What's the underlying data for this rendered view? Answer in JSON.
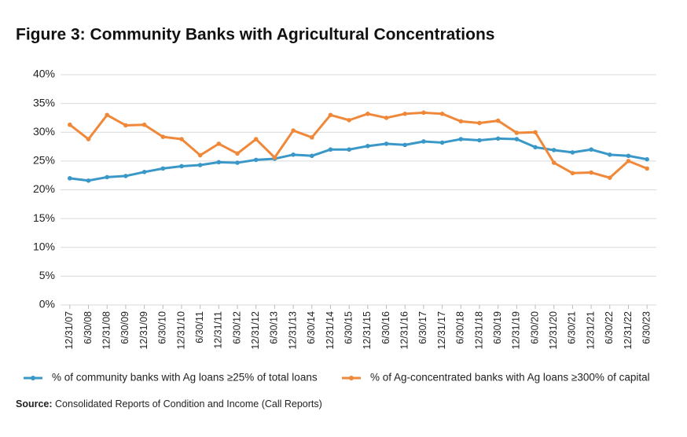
{
  "chart_data": {
    "type": "line",
    "title": "Figure 3: Community Banks with Agricultural Concentrations",
    "categories": [
      "12/31/07",
      "6/30/08",
      "12/31/08",
      "6/30/09",
      "12/31/09",
      "6/30/10",
      "12/31/10",
      "6/30/11",
      "12/31/11",
      "6/30/12",
      "12/31/12",
      "6/30/13",
      "12/31/13",
      "6/30/14",
      "12/31/14",
      "6/30/15",
      "12/31/15",
      "6/30/16",
      "12/31/16",
      "6/30/17",
      "12/31/17",
      "6/30/18",
      "12/31/18",
      "6/30/19",
      "12/31/19",
      "6/30/20",
      "12/31/20",
      "6/30/21",
      "12/31/21",
      "6/30/22",
      "12/31/22",
      "6/30/23"
    ],
    "series": [
      {
        "name": "% of community banks with Ag loans ≥25% of total loans",
        "color": "#3a98c8",
        "values": [
          22.0,
          21.6,
          22.2,
          22.4,
          23.1,
          23.7,
          24.1,
          24.3,
          24.8,
          24.7,
          25.2,
          25.4,
          26.1,
          25.9,
          27.0,
          27.0,
          27.6,
          28.0,
          27.8,
          28.4,
          28.2,
          28.8,
          28.6,
          28.9,
          28.8,
          27.4,
          26.9,
          26.5,
          27.0,
          26.1,
          25.9,
          25.3
        ]
      },
      {
        "name": "% of Ag-concentrated banks with Ag loans ≥300% of capital",
        "color": "#f0883a",
        "values": [
          31.3,
          28.8,
          33.0,
          31.2,
          31.3,
          29.2,
          28.8,
          26.0,
          28.0,
          26.3,
          28.8,
          25.6,
          30.3,
          29.1,
          33.0,
          32.1,
          33.2,
          32.5,
          33.2,
          33.4,
          33.2,
          31.9,
          31.6,
          32.0,
          29.9,
          30.0,
          24.7,
          22.9,
          23.0,
          22.1,
          25.0,
          23.7
        ]
      }
    ],
    "ylim": [
      0,
      40
    ],
    "yticks": [
      {
        "value": 0,
        "label": "0%"
      },
      {
        "value": 5,
        "label": "5%"
      },
      {
        "value": 10,
        "label": "10%"
      },
      {
        "value": 15,
        "label": "15%"
      },
      {
        "value": 20,
        "label": "20%"
      },
      {
        "value": 25,
        "label": "25%"
      },
      {
        "value": 30,
        "label": "30%"
      },
      {
        "value": 35,
        "label": "35%"
      },
      {
        "value": 40,
        "label": "40%"
      }
    ],
    "grid": true,
    "source_label": "Source:",
    "source": "Consolidated Reports of Condition and Income (Call Reports)"
  }
}
